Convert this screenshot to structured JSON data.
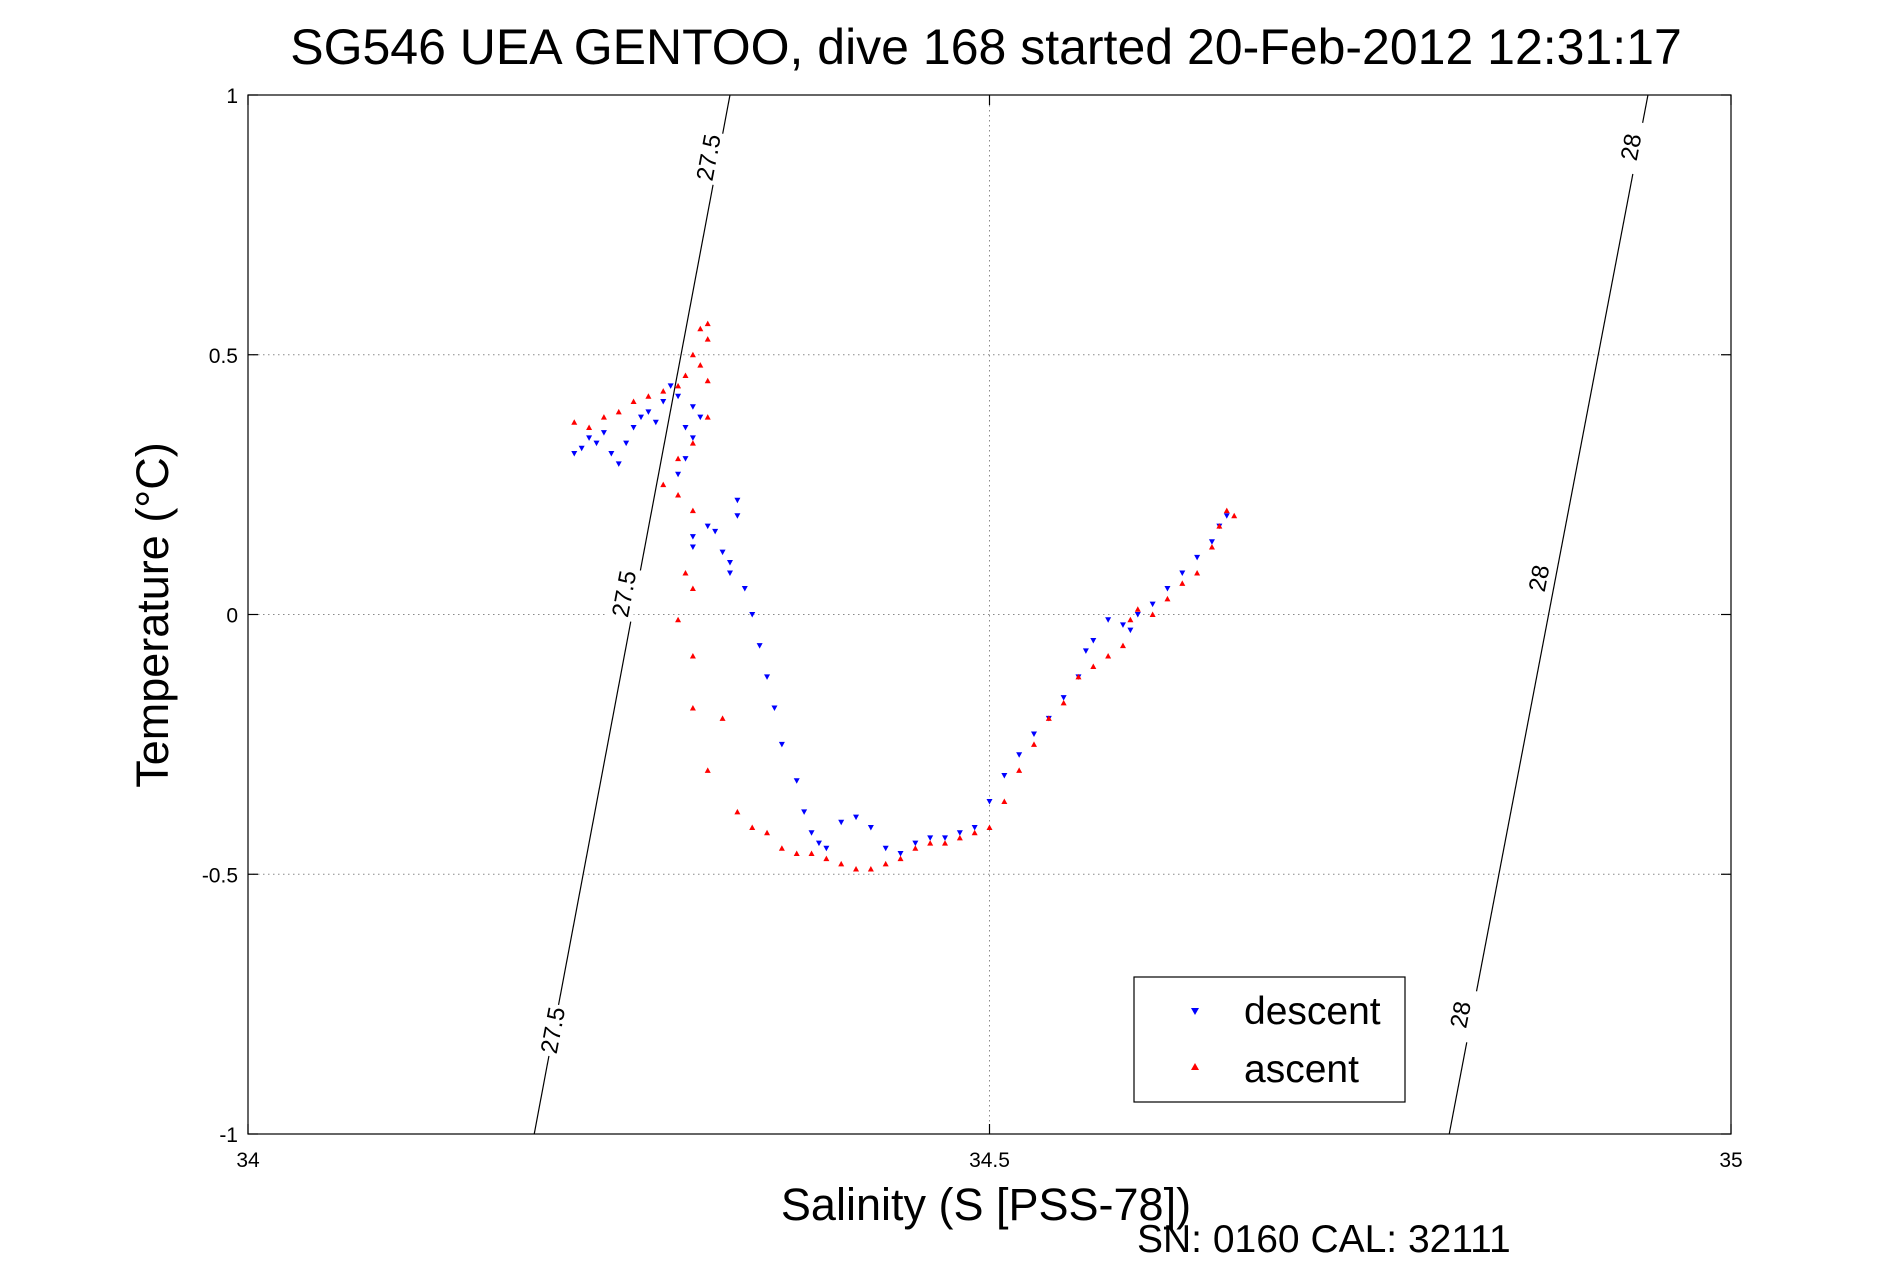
{
  "chart_data": {
    "type": "scatter",
    "title": "SG546 UEA GENTOO, dive 168 started 20-Feb-2012 12:31:17",
    "xlabel": "Salinity (S [PSS-78])",
    "ylabel": "Temperature (°C)",
    "footer": "SN: 0160  CAL: 32111",
    "xlim": [
      34,
      35
    ],
    "ylim": [
      -1,
      1
    ],
    "xticks": [
      34,
      34.5,
      35
    ],
    "yticks": [
      -1,
      -0.5,
      0,
      0.5,
      1
    ],
    "xtick_labels": [
      "34",
      "34.5",
      "35"
    ],
    "ytick_labels": [
      "-1",
      "-0.5",
      "0",
      "0.5",
      "1"
    ],
    "grid": true,
    "legend_position": "bottom-right",
    "contours": [
      {
        "label": "27.5",
        "points": [
          [
            34.193,
            -1.0
          ],
          [
            34.325,
            1.0
          ]
        ],
        "label_positions": [
          [
            34.205,
            -0.8
          ],
          [
            34.253,
            0.04
          ],
          [
            34.31,
            0.88
          ]
        ]
      },
      {
        "label": "28",
        "points": [
          [
            34.81,
            -1.0
          ],
          [
            34.944,
            1.0
          ]
        ],
        "label_positions": [
          [
            34.817,
            -0.77
          ],
          [
            34.87,
            0.07
          ],
          [
            34.932,
            0.9
          ]
        ]
      }
    ],
    "series": [
      {
        "name": "descent",
        "color": "#0000ff",
        "marker": "triangle-down",
        "points": [
          [
            34.22,
            0.31
          ],
          [
            34.225,
            0.32
          ],
          [
            34.23,
            0.34
          ],
          [
            34.235,
            0.33
          ],
          [
            34.24,
            0.35
          ],
          [
            34.245,
            0.31
          ],
          [
            34.25,
            0.29
          ],
          [
            34.255,
            0.33
          ],
          [
            34.26,
            0.36
          ],
          [
            34.265,
            0.38
          ],
          [
            34.27,
            0.39
          ],
          [
            34.275,
            0.37
          ],
          [
            34.28,
            0.41
          ],
          [
            34.285,
            0.44
          ],
          [
            34.29,
            0.42
          ],
          [
            34.295,
            0.36
          ],
          [
            34.3,
            0.4
          ],
          [
            34.305,
            0.38
          ],
          [
            34.3,
            0.34
          ],
          [
            34.295,
            0.3
          ],
          [
            34.29,
            0.27
          ],
          [
            34.3,
            0.13
          ],
          [
            34.3,
            0.15
          ],
          [
            34.31,
            0.17
          ],
          [
            34.315,
            0.16
          ],
          [
            34.32,
            0.12
          ],
          [
            34.325,
            0.1
          ],
          [
            34.33,
            0.19
          ],
          [
            34.33,
            0.22
          ],
          [
            34.325,
            0.08
          ],
          [
            34.335,
            0.05
          ],
          [
            34.34,
            0.0
          ],
          [
            34.345,
            -0.06
          ],
          [
            34.35,
            -0.12
          ],
          [
            34.355,
            -0.18
          ],
          [
            34.36,
            -0.25
          ],
          [
            34.37,
            -0.32
          ],
          [
            34.375,
            -0.38
          ],
          [
            34.38,
            -0.42
          ],
          [
            34.385,
            -0.44
          ],
          [
            34.39,
            -0.45
          ],
          [
            34.4,
            -0.4
          ],
          [
            34.41,
            -0.39
          ],
          [
            34.42,
            -0.41
          ],
          [
            34.43,
            -0.45
          ],
          [
            34.44,
            -0.46
          ],
          [
            34.45,
            -0.44
          ],
          [
            34.46,
            -0.43
          ],
          [
            34.47,
            -0.43
          ],
          [
            34.48,
            -0.42
          ],
          [
            34.49,
            -0.41
          ],
          [
            34.5,
            -0.36
          ],
          [
            34.51,
            -0.31
          ],
          [
            34.52,
            -0.27
          ],
          [
            34.53,
            -0.23
          ],
          [
            34.54,
            -0.2
          ],
          [
            34.55,
            -0.16
          ],
          [
            34.56,
            -0.12
          ],
          [
            34.565,
            -0.07
          ],
          [
            34.57,
            -0.05
          ],
          [
            34.58,
            -0.01
          ],
          [
            34.59,
            -0.02
          ],
          [
            34.595,
            -0.03
          ],
          [
            34.6,
            0.0
          ],
          [
            34.61,
            0.02
          ],
          [
            34.62,
            0.05
          ],
          [
            34.63,
            0.08
          ],
          [
            34.64,
            0.11
          ],
          [
            34.65,
            0.14
          ],
          [
            34.655,
            0.17
          ],
          [
            34.66,
            0.19
          ]
        ]
      },
      {
        "name": "ascent",
        "color": "#ff0000",
        "marker": "triangle-up",
        "points": [
          [
            34.22,
            0.37
          ],
          [
            34.23,
            0.36
          ],
          [
            34.24,
            0.38
          ],
          [
            34.25,
            0.39
          ],
          [
            34.26,
            0.41
          ],
          [
            34.27,
            0.42
          ],
          [
            34.28,
            0.43
          ],
          [
            34.29,
            0.44
          ],
          [
            34.295,
            0.46
          ],
          [
            34.3,
            0.5
          ],
          [
            34.305,
            0.55
          ],
          [
            34.31,
            0.56
          ],
          [
            34.31,
            0.53
          ],
          [
            34.305,
            0.48
          ],
          [
            34.31,
            0.45
          ],
          [
            34.31,
            0.38
          ],
          [
            34.3,
            0.33
          ],
          [
            34.29,
            0.3
          ],
          [
            34.28,
            0.25
          ],
          [
            34.29,
            0.23
          ],
          [
            34.3,
            0.2
          ],
          [
            34.295,
            0.08
          ],
          [
            34.3,
            0.05
          ],
          [
            34.29,
            -0.01
          ],
          [
            34.3,
            -0.08
          ],
          [
            34.3,
            -0.18
          ],
          [
            34.32,
            -0.2
          ],
          [
            34.31,
            -0.3
          ],
          [
            34.33,
            -0.38
          ],
          [
            34.34,
            -0.41
          ],
          [
            34.35,
            -0.42
          ],
          [
            34.36,
            -0.45
          ],
          [
            34.37,
            -0.46
          ],
          [
            34.38,
            -0.46
          ],
          [
            34.39,
            -0.47
          ],
          [
            34.4,
            -0.48
          ],
          [
            34.41,
            -0.49
          ],
          [
            34.42,
            -0.49
          ],
          [
            34.43,
            -0.48
          ],
          [
            34.44,
            -0.47
          ],
          [
            34.45,
            -0.45
          ],
          [
            34.46,
            -0.44
          ],
          [
            34.47,
            -0.44
          ],
          [
            34.48,
            -0.43
          ],
          [
            34.49,
            -0.42
          ],
          [
            34.5,
            -0.41
          ],
          [
            34.51,
            -0.36
          ],
          [
            34.52,
            -0.3
          ],
          [
            34.53,
            -0.25
          ],
          [
            34.54,
            -0.2
          ],
          [
            34.55,
            -0.17
          ],
          [
            34.56,
            -0.12
          ],
          [
            34.57,
            -0.1
          ],
          [
            34.58,
            -0.08
          ],
          [
            34.59,
            -0.06
          ],
          [
            34.595,
            -0.01
          ],
          [
            34.6,
            0.01
          ],
          [
            34.61,
            0.0
          ],
          [
            34.62,
            0.03
          ],
          [
            34.63,
            0.06
          ],
          [
            34.64,
            0.08
          ],
          [
            34.65,
            0.13
          ],
          [
            34.655,
            0.17
          ],
          [
            34.66,
            0.2
          ],
          [
            34.665,
            0.19
          ]
        ]
      }
    ]
  }
}
